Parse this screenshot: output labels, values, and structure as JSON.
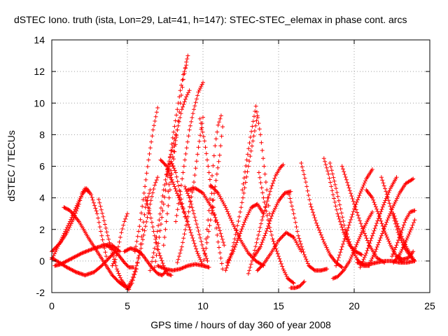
{
  "chart_data": {
    "type": "scatter",
    "title": "dSTEC Iono. truth (ista, Lon=29, Lat=41, h=147): STEC-STEC_elemax in phase cont. arcs",
    "xlabel": "GPS time / hours of day 360 of year 2008",
    "ylabel": "dSTEC  / TECUs",
    "xlim": [
      0,
      25
    ],
    "ylim": [
      -2,
      14
    ],
    "xticks": [
      0,
      5,
      10,
      15,
      20,
      25
    ],
    "yticks": [
      -2,
      0,
      2,
      4,
      6,
      8,
      10,
      12,
      14
    ],
    "grid": true,
    "marker": "+",
    "color": "#ff0000",
    "series": [
      {
        "x": [
          0.0,
          0.3,
          0.6,
          1.0,
          1.4,
          1.8,
          2.0,
          2.2,
          2.4
        ],
        "y": [
          0.6,
          0.9,
          1.2,
          1.8,
          2.6,
          3.6,
          4.3,
          4.6,
          4.4
        ]
      },
      {
        "x": [
          0.0,
          0.3,
          0.7,
          1.2,
          1.6,
          2.0,
          2.3,
          2.6,
          3.0,
          3.3,
          3.6
        ],
        "y": [
          0.1,
          0.7,
          1.5,
          2.5,
          3.4,
          4.2,
          4.6,
          4.2,
          3.0,
          1.6,
          0.3
        ]
      },
      {
        "x": [
          0.8,
          1.2,
          1.8,
          2.4,
          3.0,
          3.6,
          4.0,
          4.4,
          4.8,
          5.1
        ],
        "y": [
          3.4,
          3.2,
          2.5,
          1.5,
          0.6,
          -0.3,
          -0.9,
          -1.3,
          -1.6,
          -1.7
        ]
      },
      {
        "x": [
          0.0,
          0.5,
          1.0,
          1.6,
          2.2,
          2.8,
          3.3,
          3.8,
          4.2
        ],
        "y": [
          0.2,
          -0.1,
          -0.4,
          -0.7,
          -0.9,
          -0.7,
          -0.3,
          0.2,
          0.6
        ]
      },
      {
        "x": [
          3.1,
          3.4,
          3.7,
          4.0,
          4.3,
          4.6,
          4.9,
          5.1
        ],
        "y": [
          3.9,
          2.8,
          1.6,
          0.5,
          -0.5,
          -1.2,
          -1.6,
          -1.8
        ]
      },
      {
        "x": [
          4.0,
          4.2,
          4.4,
          4.6,
          4.8,
          5.0
        ],
        "y": [
          -0.3,
          0.1,
          0.9,
          1.8,
          2.5,
          3.0
        ]
      },
      {
        "x": [
          0.2,
          0.6,
          1.2,
          2.0,
          2.8,
          3.5,
          4.0,
          4.5
        ],
        "y": [
          -0.3,
          -0.2,
          0.1,
          0.5,
          0.8,
          1.0,
          1.0,
          0.6
        ]
      },
      {
        "x": [
          5.0,
          5.3,
          5.6,
          5.9,
          6.2,
          6.5,
          6.8,
          7.0
        ],
        "y": [
          -1.7,
          -1.2,
          -0.3,
          0.8,
          2.2,
          3.6,
          4.8,
          5.3
        ]
      },
      {
        "x": [
          5.0,
          5.3,
          5.6,
          5.8,
          6.0,
          6.2,
          6.5
        ],
        "y": [
          -1.8,
          -1.4,
          -0.5,
          0.6,
          2.0,
          3.4,
          4.5
        ]
      },
      {
        "x": [
          5.5,
          5.8,
          6.1,
          6.4,
          6.7,
          7.0
        ],
        "y": [
          0.6,
          2.2,
          4.3,
          6.4,
          8.3,
          9.7
        ]
      },
      {
        "x": [
          4.8,
          5.2,
          5.6,
          6.0,
          6.3,
          6.6,
          7.0,
          7.3,
          7.6
        ],
        "y": [
          0.6,
          0.8,
          0.7,
          0.4,
          0.0,
          -0.4,
          -0.8,
          -0.9,
          -0.6
        ]
      },
      {
        "x": [
          3.6,
          4.0,
          4.4,
          4.8,
          5.1,
          5.4
        ],
        "y": [
          1.0,
          0.8,
          0.4,
          -0.1,
          -0.4,
          -0.4
        ]
      },
      {
        "x": [
          6.2,
          6.5,
          6.8,
          7.1,
          7.4,
          7.6,
          7.9
        ],
        "y": [
          4.0,
          3.0,
          1.6,
          0.5,
          -0.3,
          -0.8,
          -0.9
        ]
      },
      {
        "x": [
          6.5,
          6.8,
          7.1,
          7.4,
          7.7,
          8.0,
          8.2
        ],
        "y": [
          -0.6,
          0.8,
          2.6,
          4.5,
          6.1,
          7.2,
          8.0
        ]
      },
      {
        "x": [
          6.8,
          7.1,
          7.4,
          7.7,
          8.0,
          8.3,
          8.5,
          8.7,
          8.9
        ],
        "y": [
          -0.4,
          1.5,
          3.6,
          5.8,
          7.8,
          9.6,
          10.8,
          11.8,
          12.4
        ]
      },
      {
        "x": [
          7.4,
          7.7,
          8.0,
          8.3,
          8.5,
          8.7,
          8.9,
          9.0
        ],
        "y": [
          1.0,
          3.5,
          6.0,
          8.3,
          10.0,
          11.5,
          12.6,
          13.0
        ]
      },
      {
        "x": [
          7.6,
          7.9,
          8.2,
          8.5,
          8.8
        ],
        "y": [
          5.5,
          6.3,
          5.6,
          4.2,
          2.8
        ]
      },
      {
        "x": [
          7.7,
          8.0,
          8.3,
          8.6,
          8.9,
          9.1
        ],
        "y": [
          4.4,
          6.6,
          8.3,
          9.6,
          10.4,
          10.8
        ]
      },
      {
        "x": [
          8.2,
          8.5,
          8.8,
          9.1,
          9.4,
          9.7,
          10.0
        ],
        "y": [
          2.5,
          4.4,
          6.4,
          8.3,
          9.6,
          10.7,
          11.3
        ]
      },
      {
        "x": [
          8.3,
          8.6,
          9.0,
          9.4,
          9.7,
          10.0
        ],
        "y": [
          -0.1,
          0.9,
          2.8,
          5.0,
          7.2,
          9.1
        ]
      },
      {
        "x": [
          7.2,
          7.6,
          8.0,
          8.4,
          8.8,
          9.2,
          9.6,
          10.0
        ],
        "y": [
          6.4,
          6.0,
          5.0,
          4.0,
          3.0,
          1.8,
          0.6,
          -0.3
        ]
      },
      {
        "x": [
          7.0,
          7.5,
          8.0,
          8.5,
          9.0,
          9.5,
          10.0,
          10.4
        ],
        "y": [
          -0.3,
          -0.5,
          -0.6,
          -0.5,
          -0.3,
          -0.2,
          -0.3,
          -0.4
        ]
      },
      {
        "x": [
          8.8,
          9.1,
          9.4,
          9.7,
          10.0,
          10.3
        ],
        "y": [
          4.7,
          4.0,
          3.0,
          1.9,
          0.8,
          0.0
        ]
      },
      {
        "x": [
          9.8,
          10.1,
          10.4,
          10.7,
          11.0,
          11.3
        ],
        "y": [
          9.0,
          7.6,
          5.6,
          3.4,
          1.2,
          -0.5
        ]
      },
      {
        "x": [
          10.2,
          10.4,
          10.6,
          10.8,
          11.0,
          11.2
        ],
        "y": [
          1.4,
          3.2,
          5.4,
          7.3,
          8.6,
          9.2
        ]
      },
      {
        "x": [
          10.0,
          10.2,
          10.5,
          10.8,
          11.1,
          11.3
        ],
        "y": [
          -0.3,
          0.8,
          2.6,
          4.7,
          6.7,
          8.5
        ]
      },
      {
        "x": [
          9.0,
          9.5,
          10.0,
          10.5,
          11.0,
          11.4
        ],
        "y": [
          4.5,
          4.6,
          4.3,
          3.5,
          2.3,
          1.0
        ]
      },
      {
        "x": [
          10.5,
          11.0,
          11.5,
          12.0,
          12.5,
          13.0,
          13.5,
          14.0
        ],
        "y": [
          4.8,
          4.3,
          3.4,
          2.3,
          1.3,
          0.5,
          0.0,
          -0.3
        ]
      },
      {
        "x": [
          11.5,
          11.8,
          12.1,
          12.4,
          12.7,
          13.0,
          13.3,
          13.6
        ],
        "y": [
          -0.6,
          0.2,
          1.4,
          2.8,
          4.3,
          6.0,
          7.6,
          9.2
        ]
      },
      {
        "x": [
          12.6,
          12.9,
          13.2,
          13.5,
          13.8,
          14.1,
          14.4
        ],
        "y": [
          4.5,
          6.4,
          8.2,
          9.8,
          8.0,
          5.5,
          3.0
        ]
      },
      {
        "x": [
          11.6,
          12.0,
          12.4,
          12.8,
          13.2,
          13.6,
          14.0
        ],
        "y": [
          -0.1,
          0.6,
          1.6,
          2.6,
          3.4,
          3.6,
          3.0
        ]
      },
      {
        "x": [
          13.0,
          13.3,
          13.6,
          13.9,
          14.2,
          14.5,
          14.8,
          15.1,
          15.3
        ],
        "y": [
          -0.8,
          0.2,
          1.4,
          2.6,
          3.6,
          4.6,
          5.4,
          5.9,
          6.1
        ]
      },
      {
        "x": [
          13.4,
          13.8,
          14.2,
          14.6,
          15.0,
          15.4,
          15.8
        ],
        "y": [
          0.3,
          0.9,
          1.9,
          3.0,
          3.8,
          4.3,
          4.4
        ]
      },
      {
        "x": [
          13.7,
          14.0,
          14.3,
          14.6,
          15.0,
          15.3,
          15.6,
          16.0
        ],
        "y": [
          5.6,
          4.0,
          2.6,
          1.4,
          0.3,
          -0.5,
          -1.1,
          -1.4
        ]
      },
      {
        "x": [
          13.6,
          14.0,
          14.5,
          15.0,
          15.5,
          16.0,
          16.5
        ],
        "y": [
          -0.6,
          -0.2,
          0.5,
          1.3,
          1.8,
          1.5,
          0.6
        ]
      },
      {
        "x": [
          15.7,
          16.0,
          16.3,
          16.7,
          17.0,
          17.4,
          17.8,
          18.2
        ],
        "y": [
          4.2,
          3.0,
          1.6,
          0.4,
          -0.3,
          -0.6,
          -0.6,
          -0.5
        ]
      },
      {
        "x": [
          15.8,
          16.1,
          16.4,
          16.7
        ],
        "y": [
          -1.7,
          -1.7,
          -1.6,
          -1.3
        ]
      },
      {
        "x": [
          16.5,
          16.8,
          17.1,
          17.5,
          18.0,
          18.4,
          18.8,
          19.2
        ],
        "y": [
          6.2,
          5.0,
          3.6,
          2.4,
          1.2,
          0.4,
          -0.1,
          -0.4
        ]
      },
      {
        "x": [
          18.0,
          18.3,
          18.6,
          18.9,
          19.3,
          19.7,
          20.1,
          20.5
        ],
        "y": [
          6.5,
          5.5,
          4.2,
          3.0,
          1.8,
          1.0,
          0.6,
          0.4
        ]
      },
      {
        "x": [
          18.4,
          18.8,
          19.1,
          19.4,
          19.8,
          20.2,
          20.6,
          21.0
        ],
        "y": [
          6.2,
          4.6,
          3.3,
          2.0,
          0.9,
          0.1,
          -0.3,
          -0.3
        ]
      },
      {
        "x": [
          18.8,
          19.2,
          19.6,
          20.0,
          20.4,
          20.8,
          21.2
        ],
        "y": [
          -0.3,
          0.9,
          2.1,
          3.3,
          4.3,
          5.2,
          5.8
        ]
      },
      {
        "x": [
          18.6,
          18.9,
          19.3,
          19.7,
          20.1,
          20.5,
          20.9,
          21.2
        ],
        "y": [
          -1.1,
          -1.0,
          -0.6,
          0.0,
          0.9,
          1.8,
          2.6,
          3.1
        ]
      },
      {
        "x": [
          19.2,
          19.6,
          20.0,
          20.5,
          21.0,
          21.5,
          22.0
        ],
        "y": [
          6.0,
          4.8,
          3.6,
          2.2,
          1.0,
          0.2,
          -0.1
        ]
      },
      {
        "x": [
          20.8,
          21.2,
          21.6,
          22.0,
          22.4,
          22.8,
          23.2
        ],
        "y": [
          4.5,
          4.0,
          3.0,
          1.9,
          1.0,
          0.3,
          -0.1
        ]
      },
      {
        "x": [
          21.0,
          21.4,
          21.8,
          22.2,
          22.6,
          23.0,
          23.4,
          23.9
        ],
        "y": [
          -0.2,
          0.6,
          1.6,
          2.6,
          3.5,
          4.3,
          4.9,
          5.2
        ]
      },
      {
        "x": [
          20.4,
          20.8,
          21.2,
          21.6,
          22.0,
          22.4,
          22.8
        ],
        "y": [
          -0.4,
          0.5,
          1.6,
          2.7,
          3.7,
          4.6,
          5.3
        ]
      },
      {
        "x": [
          20.2,
          20.6,
          21.0,
          21.5,
          22.0,
          22.5,
          23.0,
          23.5,
          24.0
        ],
        "y": [
          -0.1,
          -0.2,
          -0.2,
          -0.1,
          0.0,
          0.0,
          -0.1,
          -0.1,
          0.0
        ]
      },
      {
        "x": [
          21.8,
          22.1,
          22.5,
          22.9,
          23.3,
          23.7,
          24.0
        ],
        "y": [
          5.3,
          4.4,
          3.1,
          1.8,
          0.9,
          0.3,
          0.0
        ]
      },
      {
        "x": [
          22.5,
          22.8,
          23.1,
          23.4,
          23.7,
          24.0
        ],
        "y": [
          0.3,
          1.0,
          1.8,
          2.6,
          3.1,
          3.2
        ]
      },
      {
        "x": [
          22.6,
          22.9,
          23.2,
          23.5,
          23.8,
          24.0
        ],
        "y": [
          3.0,
          2.2,
          1.4,
          0.8,
          0.3,
          0.0
        ]
      },
      {
        "x": [
          22.6,
          23.0,
          23.4,
          23.8,
          24.0
        ],
        "y": [
          -0.1,
          0.4,
          1.2,
          2.1,
          2.6
        ]
      },
      {
        "x": [
          22.8,
          23.2,
          23.6,
          23.9
        ],
        "y": [
          0.3,
          0.1,
          0.2,
          0.6
        ]
      }
    ]
  }
}
